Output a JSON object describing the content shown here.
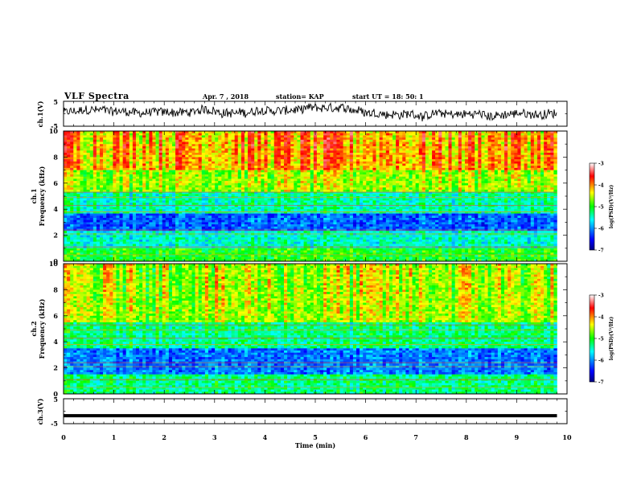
{
  "header": {
    "title": "VLF Spectra",
    "date": "Apr. 7 , 2018",
    "station": "station= KAP",
    "start": "start  UT =  18: 50: 1"
  },
  "chart_data": [
    {
      "type": "line",
      "title": "",
      "ylabel": "ch.1(V)",
      "ylim": [
        -5,
        5
      ],
      "yticks": [
        "5",
        "-5"
      ],
      "xlim": [
        0,
        10
      ],
      "series": [
        {
          "values_description_free": true,
          "x": [
            0,
            10
          ],
          "y_mean": 0.5,
          "y_range": [
            -3,
            4
          ]
        }
      ]
    },
    {
      "type": "heatmap",
      "ylabel_top": "ch.1",
      "ylabel": "Frequency (kHz)",
      "ylim": [
        0,
        10
      ],
      "yticks": [
        "0",
        "2",
        "4",
        "6",
        "8",
        "10"
      ],
      "xlim": [
        0,
        10
      ],
      "data_end_min": 9.8,
      "colorbar": {
        "label": "log(PSD)(V²/Hz)",
        "range": [
          -7,
          -3
        ],
        "ticks": [
          "-3",
          "-4",
          "-5",
          "-6",
          "-7"
        ]
      },
      "bands": [
        {
          "range": [
            0,
            1
          ],
          "level": -5
        },
        {
          "range": [
            1,
            2.4
          ],
          "level": -5.5
        },
        {
          "range": [
            2.4,
            3.6
          ],
          "level": -6.2
        },
        {
          "range": [
            3.6,
            5.4
          ],
          "level": -5.4
        },
        {
          "range": [
            5.4,
            7
          ],
          "level": -4.6
        },
        {
          "range": [
            7,
            10
          ],
          "level": -4.1
        }
      ]
    },
    {
      "type": "heatmap",
      "ylabel_top": "ch.2",
      "ylabel": "Frequency (kHz)",
      "ylim": [
        0,
        10
      ],
      "yticks": [
        "0",
        "2",
        "4",
        "6",
        "8",
        "10"
      ],
      "xlim": [
        0,
        10
      ],
      "data_end_min": 9.8,
      "colorbar": {
        "label": "log(PSD)(V²/Hz)",
        "range": [
          -7,
          -3
        ],
        "ticks": [
          "-3",
          "-4",
          "-5",
          "-6",
          "-7"
        ]
      },
      "bands": [
        {
          "range": [
            0,
            1.5
          ],
          "level": -5.3
        },
        {
          "range": [
            1.5,
            3.5
          ],
          "level": -6.1
        },
        {
          "range": [
            3.5,
            5.5
          ],
          "level": -5.3
        },
        {
          "range": [
            5.5,
            10
          ],
          "level": -4.6
        }
      ]
    },
    {
      "type": "line",
      "ylabel": "ch.3(V)",
      "ylim": [
        -5,
        5
      ],
      "yticks": [
        "5",
        "-5"
      ],
      "xlim": [
        0,
        10
      ],
      "xlabel": "Time  (min)",
      "xticks": [
        "0",
        "1",
        "2",
        "3",
        "4",
        "5",
        "6",
        "7",
        "8",
        "9",
        "10"
      ],
      "series": [
        {
          "x": [
            0,
            9.8
          ],
          "y": [
            -1.8,
            -1.8
          ]
        }
      ]
    }
  ]
}
